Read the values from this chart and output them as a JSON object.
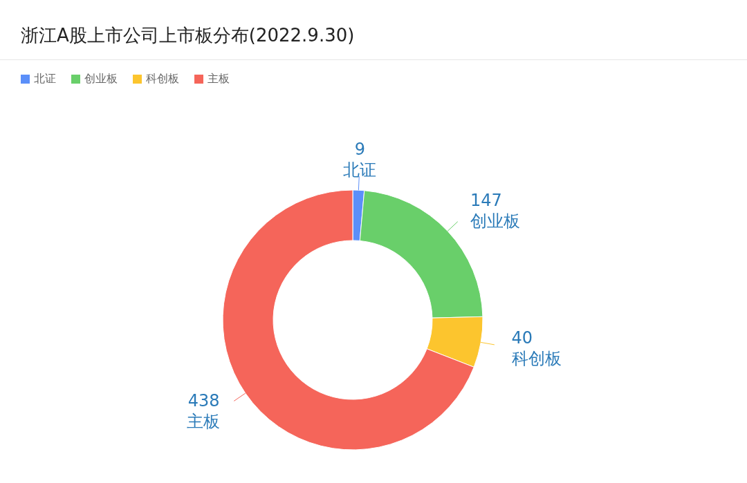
{
  "chart_data": {
    "type": "donut",
    "title": "浙江A股上市公司上市板分布(2022.9.30)",
    "categories": [
      "北证",
      "创业板",
      "科创板",
      "主板"
    ],
    "values": [
      9,
      147,
      40,
      438
    ],
    "colors": [
      "#5b8ff9",
      "#69cf6a",
      "#fcc52e",
      "#f5655a"
    ],
    "data_labels": true,
    "legend": "top left"
  }
}
